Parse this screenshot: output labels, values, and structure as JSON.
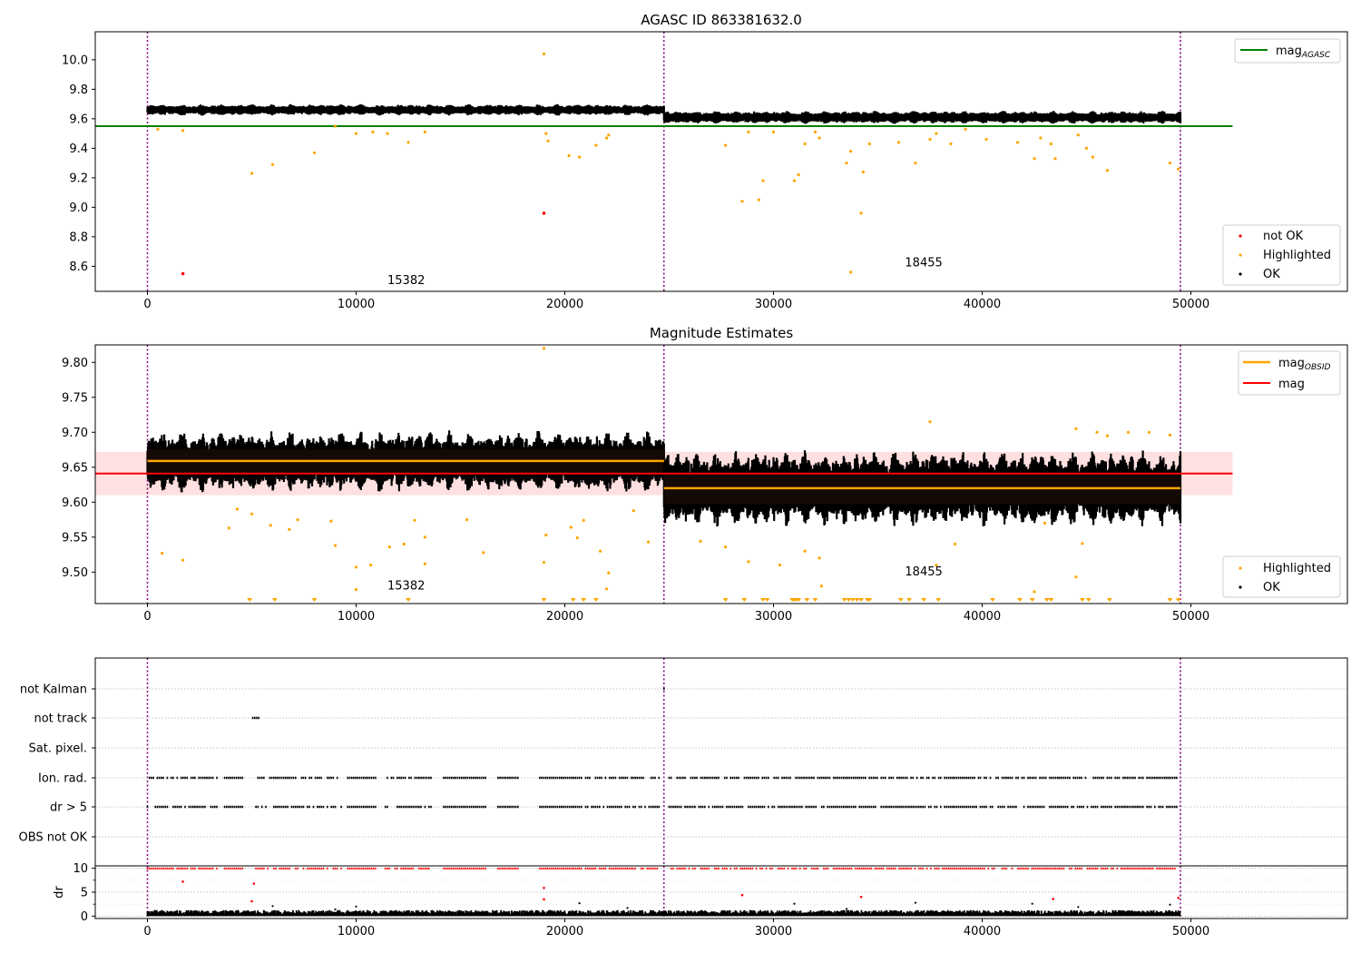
{
  "chart_data": [
    {
      "type": "scatter",
      "title": "AGASC ID 863381632.0",
      "xlim": [
        -2500,
        57500
      ],
      "ylim": [
        8.43,
        10.19
      ],
      "x_ticks": [
        0,
        10000,
        20000,
        30000,
        40000,
        50000
      ],
      "y_ticks": [
        8.6,
        8.8,
        9.0,
        9.2,
        9.4,
        9.6,
        9.8,
        10.0
      ],
      "obsid_boundaries": [
        0,
        24750,
        49500
      ],
      "obsid_labels": [
        {
          "text": "15382",
          "x": 12400,
          "y": 8.48
        },
        {
          "text": "18455",
          "x": 37200,
          "y": 8.6
        }
      ],
      "reference_line": {
        "name": "mag_AGASC",
        "label_main": "mag",
        "label_sub": "AGASC",
        "y": 9.55,
        "x_range": [
          -2500,
          52000
        ],
        "color": "#008000"
      },
      "legend_lines_position": "upper right",
      "legend_points_position": "lower right",
      "point_series": [
        {
          "name": "not OK",
          "color": "#ff0000"
        },
        {
          "name": "Highlighted",
          "color": "#ffa500"
        },
        {
          "name": "OK",
          "color": "#000000"
        }
      ],
      "ok_band": [
        {
          "x_range": [
            0,
            24750
          ],
          "center": 9.66,
          "amplitude": 0.035
        },
        {
          "x_range": [
            24750,
            49500
          ],
          "center": 9.61,
          "amplitude": 0.04
        }
      ],
      "not_ok_points": [
        [
          1700,
          8.55
        ],
        [
          19000,
          8.96
        ]
      ],
      "highlighted_points": [
        [
          500,
          9.53
        ],
        [
          1700,
          9.52
        ],
        [
          5000,
          9.23
        ],
        [
          6000,
          9.29
        ],
        [
          8000,
          9.37
        ],
        [
          9000,
          9.55
        ],
        [
          10000,
          9.5
        ],
        [
          10800,
          9.51
        ],
        [
          11500,
          9.5
        ],
        [
          12500,
          9.44
        ],
        [
          13300,
          9.51
        ],
        [
          19000,
          10.04
        ],
        [
          19100,
          9.5
        ],
        [
          19200,
          9.45
        ],
        [
          20200,
          9.35
        ],
        [
          20700,
          9.34
        ],
        [
          21500,
          9.42
        ],
        [
          22000,
          9.47
        ],
        [
          22100,
          9.49
        ],
        [
          27700,
          9.42
        ],
        [
          28500,
          9.04
        ],
        [
          28800,
          9.51
        ],
        [
          29300,
          9.05
        ],
        [
          29500,
          9.18
        ],
        [
          30000,
          9.51
        ],
        [
          31000,
          9.18
        ],
        [
          31200,
          9.22
        ],
        [
          31500,
          9.43
        ],
        [
          32000,
          9.51
        ],
        [
          32200,
          9.47
        ],
        [
          33500,
          9.3
        ],
        [
          33700,
          9.38
        ],
        [
          34200,
          8.96
        ],
        [
          34300,
          9.24
        ],
        [
          34600,
          9.43
        ],
        [
          33700,
          8.56
        ],
        [
          36000,
          9.44
        ],
        [
          36800,
          9.3
        ],
        [
          37500,
          9.46
        ],
        [
          37800,
          9.5
        ],
        [
          38500,
          9.43
        ],
        [
          39200,
          9.53
        ],
        [
          40200,
          9.46
        ],
        [
          41700,
          9.44
        ],
        [
          42500,
          9.33
        ],
        [
          42800,
          9.47
        ],
        [
          43300,
          9.43
        ],
        [
          43500,
          9.33
        ],
        [
          44600,
          9.49
        ],
        [
          45000,
          9.4
        ],
        [
          45300,
          9.34
        ],
        [
          46000,
          9.25
        ],
        [
          49000,
          9.3
        ],
        [
          49400,
          9.26
        ]
      ]
    },
    {
      "type": "scatter",
      "title": "Magnitude Estimates",
      "xlim": [
        -2500,
        57500
      ],
      "ylim": [
        9.455,
        9.825
      ],
      "x_ticks": [
        0,
        10000,
        20000,
        30000,
        40000,
        50000
      ],
      "y_ticks": [
        9.5,
        9.55,
        9.6,
        9.65,
        9.7,
        9.75,
        9.8
      ],
      "obsid_boundaries": [
        0,
        24750,
        49500
      ],
      "obsid_labels": [
        {
          "text": "15382",
          "x": 12400,
          "y": 9.475
        },
        {
          "text": "18455",
          "x": 37200,
          "y": 9.495
        }
      ],
      "lines": [
        {
          "name": "mag_OBSID",
          "label_main": "mag",
          "label_sub": "OBSID",
          "color": "#ffa500",
          "segments": [
            {
              "x_range": [
                0,
                24750
              ],
              "y": 9.659
            },
            {
              "x_range": [
                24750,
                49500
              ],
              "y": 9.62
            }
          ]
        },
        {
          "name": "mag",
          "label_main": "mag",
          "label_sub": "",
          "color": "#ff0000",
          "y": 9.641,
          "x_range": [
            -2500,
            52000
          ],
          "band": [
            9.61,
            9.672
          ]
        }
      ],
      "legend_lines_position": "upper right",
      "legend_points_position": "lower right",
      "point_series": [
        {
          "name": "Highlighted",
          "color": "#ffa500"
        },
        {
          "name": "OK",
          "color": "#000000"
        }
      ],
      "ok_band": [
        {
          "x_range": [
            0,
            24750
          ],
          "center": 9.658,
          "amplitude": 0.04
        },
        {
          "x_range": [
            24750,
            49500
          ],
          "center": 9.62,
          "amplitude": 0.05
        }
      ],
      "highlighted_points": [
        [
          700,
          9.527
        ],
        [
          1700,
          9.517
        ],
        [
          3900,
          9.563
        ],
        [
          4300,
          9.59
        ],
        [
          5000,
          9.583
        ],
        [
          5900,
          9.567
        ],
        [
          6800,
          9.561
        ],
        [
          7200,
          9.575
        ],
        [
          8800,
          9.573
        ],
        [
          9000,
          9.538
        ],
        [
          10000,
          9.507
        ],
        [
          10000,
          9.475
        ],
        [
          10700,
          9.51
        ],
        [
          11600,
          9.536
        ],
        [
          12300,
          9.54
        ],
        [
          12800,
          9.574
        ],
        [
          13300,
          9.55
        ],
        [
          13300,
          9.512
        ],
        [
          15300,
          9.575
        ],
        [
          16100,
          9.528
        ],
        [
          19000,
          9.514
        ],
        [
          19100,
          9.553
        ],
        [
          20300,
          9.564
        ],
        [
          20600,
          9.549
        ],
        [
          20900,
          9.574
        ],
        [
          21700,
          9.53
        ],
        [
          22100,
          9.499
        ],
        [
          22000,
          9.476
        ],
        [
          23300,
          9.588
        ],
        [
          24000,
          9.543
        ],
        [
          19000,
          9.82
        ],
        [
          26500,
          9.544
        ],
        [
          27700,
          9.536
        ],
        [
          28800,
          9.515
        ],
        [
          30300,
          9.51
        ],
        [
          31500,
          9.53
        ],
        [
          32200,
          9.52
        ],
        [
          32300,
          9.48
        ],
        [
          37500,
          9.715
        ],
        [
          37800,
          9.51
        ],
        [
          38700,
          9.54
        ],
        [
          42500,
          9.472
        ],
        [
          43000,
          9.57
        ],
        [
          44500,
          9.493
        ],
        [
          44800,
          9.541
        ],
        [
          44500,
          9.705
        ],
        [
          45500,
          9.7
        ],
        [
          46000,
          9.695
        ],
        [
          47000,
          9.7
        ],
        [
          48000,
          9.7
        ],
        [
          49000,
          9.696
        ]
      ],
      "highlighted_low_markers": [
        4900,
        6100,
        8000,
        12500,
        19000,
        20400,
        20900,
        21500,
        27700,
        28600,
        29500,
        29700,
        30900,
        31000,
        31100,
        31200,
        31600,
        32000,
        33400,
        33600,
        33800,
        34000,
        34200,
        34500,
        34600,
        36100,
        36500,
        37200,
        37900,
        40500,
        41800,
        42400,
        43100,
        43300,
        44800,
        45100,
        46100,
        49000,
        49400
      ]
    },
    {
      "type": "scatter",
      "title": "",
      "xlim": [
        -2500,
        57500
      ],
      "x_ticks": [
        0,
        10000,
        20000,
        30000,
        40000,
        50000
      ],
      "obsid_boundaries": [
        0,
        24750,
        49500
      ],
      "flag_rows": [
        "not Kalman",
        "not track",
        "Sat. pixel.",
        "Ion. rad.",
        "dr > 5",
        "OBS not OK"
      ],
      "flag_points": {
        "not track": [
          [
            5050,
            5350
          ]
        ],
        "not Kalman": [
          [
            24750,
            24790
          ]
        ],
        "Ion. rad.": [
          [
            0,
            3400
          ],
          [
            3700,
            4600
          ],
          [
            5200,
            9300
          ],
          [
            9600,
            11000
          ],
          [
            11400,
            13600
          ],
          [
            14200,
            16200
          ],
          [
            16800,
            17800
          ],
          [
            18800,
            20800
          ],
          [
            21000,
            24600
          ],
          [
            25000,
            49400
          ]
        ],
        "dr > 5": [
          [
            0,
            3400
          ],
          [
            3700,
            4600
          ],
          [
            5200,
            9300
          ],
          [
            9600,
            11000
          ],
          [
            11400,
            13600
          ],
          [
            14200,
            16200
          ],
          [
            16800,
            17800
          ],
          [
            18800,
            20800
          ],
          [
            21000,
            24600
          ],
          [
            25000,
            49400
          ]
        ]
      }
    },
    {
      "type": "scatter",
      "title": "",
      "ylabel": "dr",
      "xlim": [
        -2500,
        57500
      ],
      "ylim": [
        -0.5,
        10.5
      ],
      "x_ticks": [
        0,
        10000,
        20000,
        30000,
        40000,
        50000
      ],
      "y_ticks": [
        0,
        5,
        10
      ],
      "obsid_boundaries": [
        0,
        24750,
        49500
      ],
      "red_points_capped": 10,
      "red_outliers": [
        [
          1700,
          7.2
        ],
        [
          5000,
          3.1
        ],
        [
          5100,
          6.8
        ],
        [
          19000,
          5.9
        ],
        [
          19000,
          3.5
        ],
        [
          28500,
          4.4
        ],
        [
          34200,
          4.0
        ],
        [
          43400,
          3.6
        ],
        [
          49400,
          3.8
        ]
      ],
      "black_outliers": [
        [
          6000,
          2.1
        ],
        [
          9000,
          1.4
        ],
        [
          10000,
          2.0
        ],
        [
          20700,
          2.7
        ],
        [
          23000,
          1.7
        ],
        [
          31000,
          2.6
        ],
        [
          33500,
          1.5
        ],
        [
          36800,
          2.8
        ],
        [
          42400,
          2.6
        ],
        [
          44600,
          1.9
        ],
        [
          49000,
          2.4
        ]
      ]
    }
  ]
}
